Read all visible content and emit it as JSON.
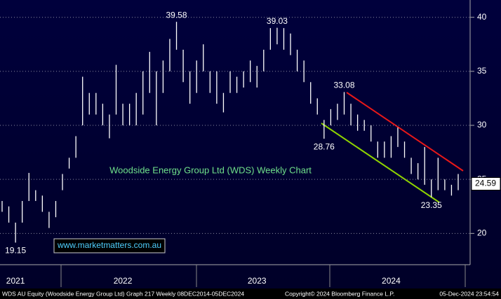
{
  "chart_data": {
    "type": "hilo",
    "title": "Woodside Energy Group Ltd (WDS) Weekly Chart",
    "website": "www.marketmatters.com.au",
    "color": "#ffffff",
    "categories": [
      null,
      null,
      "2021",
      null,
      null,
      null,
      null,
      null,
      null,
      null,
      null,
      null,
      null,
      null,
      null,
      null,
      null,
      null,
      "2022",
      null,
      null,
      null,
      null,
      null,
      null,
      null,
      null,
      null,
      null,
      null,
      null,
      null,
      null,
      null,
      null,
      null,
      null,
      null,
      "2023",
      null,
      null,
      null,
      null,
      null,
      null,
      null,
      null,
      null,
      null,
      null,
      null,
      null,
      null,
      null,
      null,
      null,
      null,
      null,
      "2024",
      null,
      null,
      null,
      null,
      null,
      null,
      null,
      null,
      null,
      null
    ],
    "high": [
      23,
      22.5,
      21,
      23,
      25.6,
      24,
      23.5,
      22,
      23,
      25.5,
      27,
      29,
      34.5,
      33,
      33,
      32,
      31,
      35.6,
      32,
      32,
      33,
      35,
      36.8,
      35,
      36,
      38,
      39.58,
      37,
      35,
      36,
      37.5,
      35,
      35,
      33,
      35,
      34.5,
      35,
      36,
      35.5,
      37,
      39,
      39.03,
      39,
      38.5,
      37,
      36,
      34,
      32.5,
      30.5,
      31.5,
      32,
      33.08,
      32,
      31,
      30.5,
      30,
      28.5,
      28.5,
      29,
      29.8,
      28.5,
      27,
      26.5,
      28,
      25,
      27,
      25,
      24.5,
      25.5
    ],
    "low": [
      22,
      21,
      19.15,
      21,
      23,
      23,
      22,
      20.5,
      21.5,
      24,
      26,
      27,
      30,
      31,
      31,
      30,
      28.8,
      31,
      30,
      30,
      30,
      31,
      33,
      30,
      33,
      35,
      37,
      34,
      32,
      33,
      35,
      33,
      32,
      31.2,
      33,
      33,
      33.5,
      34,
      33.5,
      35,
      37,
      37.5,
      37,
      36.5,
      35,
      34,
      32,
      31,
      28.76,
      30,
      30.5,
      31,
      30,
      29.5,
      29.5,
      28.5,
      27,
      27,
      27,
      28,
      27,
      25.5,
      25,
      24.5,
      23.35,
      24,
      24,
      23.5,
      24
    ],
    "annotations": [
      19.15,
      39.58,
      39.03,
      33.08,
      28.76,
      23.35
    ],
    "last_price": 24.59,
    "ylim": [
      17.3,
      41.6
    ],
    "yticks": [
      20,
      25,
      30,
      35,
      40
    ],
    "grid": true
  },
  "footer": {
    "left": "WDS AU Equity (Woodside Energy Group Ltd) Graph 217  Weekly 08DEC2014-05DEC2024",
    "center": "Copyright© 2024 Bloomberg Finance L.P.",
    "right": "05-Dec-2024 23:54:54"
  }
}
